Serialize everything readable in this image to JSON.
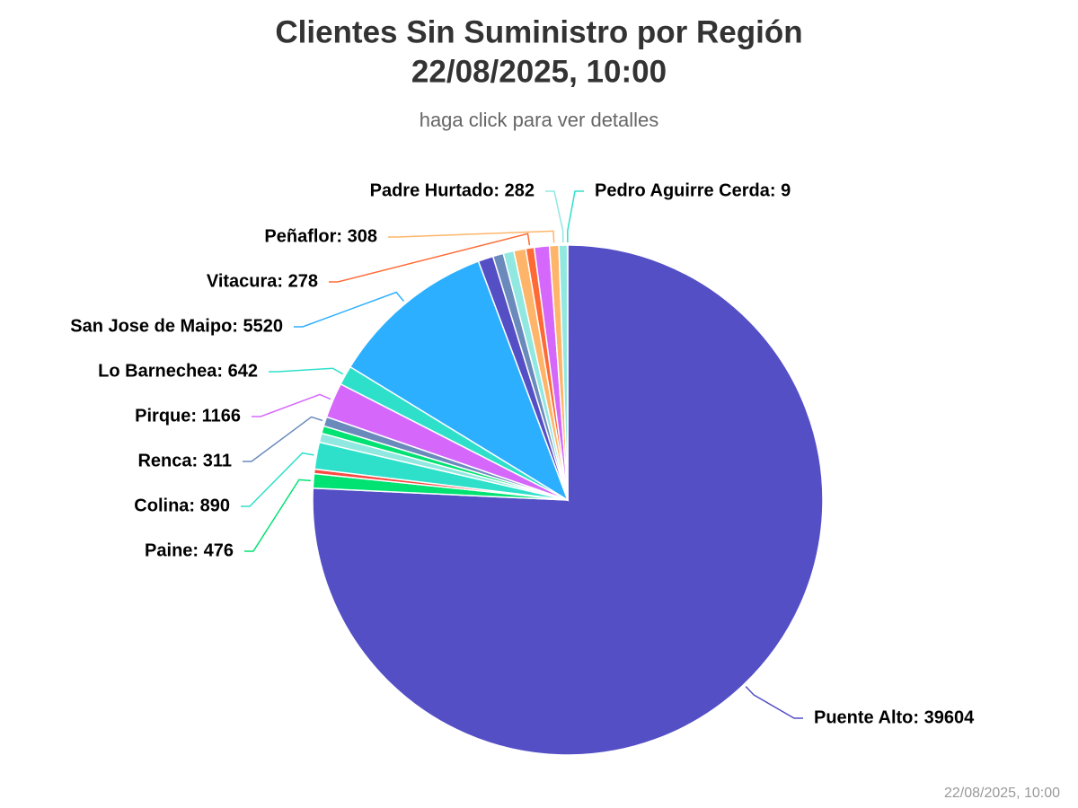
{
  "chart_data": {
    "type": "pie",
    "title": [
      "Clientes Sin Suministro por Región",
      "22/08/2025, 10:00"
    ],
    "subtitle": "haga click para ver detalles",
    "credit": "22/08/2025, 10:00",
    "values": [
      39604,
      476,
      150,
      890,
      300,
      250,
      311,
      1166,
      642,
      5520,
      500,
      350,
      350,
      400,
      278,
      500,
      308,
      282,
      9
    ],
    "value_labels": [
      "Puente Alto: 39604",
      "Paine: 476",
      null,
      "Colina: 890",
      null,
      null,
      "Renca: 311",
      "Pirque: 1166",
      "Lo Barnechea: 642",
      "San Jose de Maipo: 5520",
      null,
      null,
      null,
      null,
      "Vitacura: 278",
      null,
      "Peñaflor: 308",
      "Padre Hurtado: 282",
      "Pedro Aguirre Cerda: 9"
    ],
    "colors": [
      "#544fc5",
      "#00e272",
      "#fa4b42",
      "#2ee0ca",
      "#91e8e1",
      "#00e272",
      "#6b8abc",
      "#d568fb",
      "#2ee0ca",
      "#2caffe",
      "#544fc5",
      "#6b8abc",
      "#91e8e1",
      "#feb56a",
      "#fe6a35",
      "#d568fb",
      "#feb56a",
      "#91e8e1",
      "#2ee0ca"
    ]
  }
}
